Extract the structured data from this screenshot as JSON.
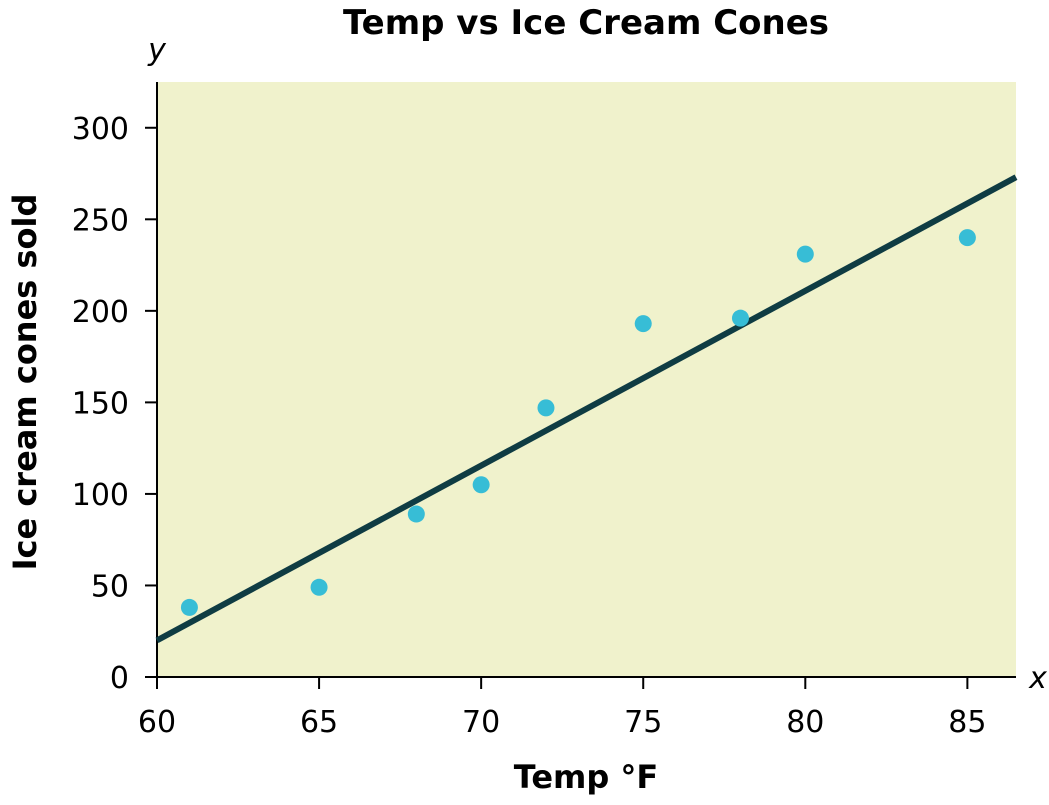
{
  "chart_data": {
    "type": "scatter",
    "title": "Temp vs Ice Cream Cones",
    "xlabel": "Temp °F",
    "ylabel": "Ice cream cones sold",
    "x_axis_var": "x",
    "y_axis_var": "y",
    "xlim": [
      60,
      86.5
    ],
    "ylim": [
      0,
      325
    ],
    "xticks": [
      60,
      65,
      70,
      75,
      80,
      85
    ],
    "yticks": [
      0,
      50,
      100,
      150,
      200,
      250,
      300
    ],
    "grid": false,
    "series": [
      {
        "type": "scatter",
        "points": [
          {
            "x": 61,
            "y": 38
          },
          {
            "x": 65,
            "y": 49
          },
          {
            "x": 68,
            "y": 89
          },
          {
            "x": 70,
            "y": 105
          },
          {
            "x": 72,
            "y": 147
          },
          {
            "x": 75,
            "y": 193
          },
          {
            "x": 78,
            "y": 196
          },
          {
            "x": 80,
            "y": 231
          },
          {
            "x": 85,
            "y": 240
          }
        ]
      },
      {
        "type": "line",
        "points": [
          {
            "x": 60,
            "y": 20
          },
          {
            "x": 86.5,
            "y": 273
          }
        ]
      }
    ],
    "colors": {
      "plot_background": "#f0f2cc",
      "points": "#37bdd6",
      "trend_line": "#0f3c43",
      "axis": "#000000"
    }
  }
}
